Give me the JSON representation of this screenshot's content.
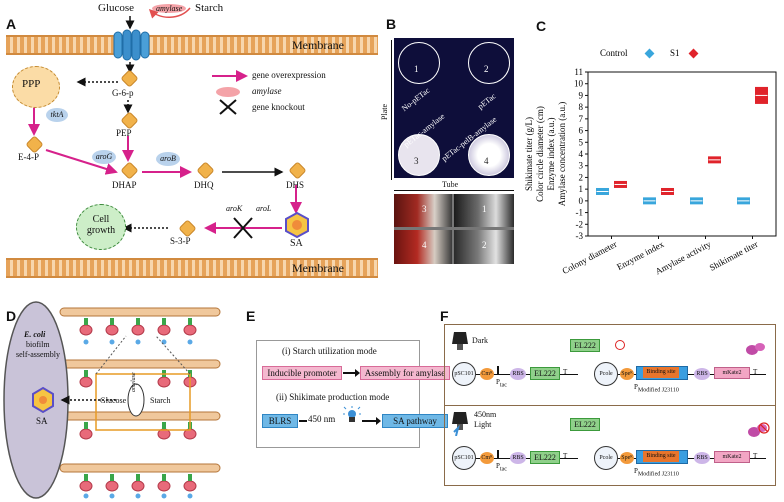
{
  "panelA": {
    "letter": "A",
    "glucose": "Glucose",
    "amylase_enzyme": "amylase",
    "starch": "Starch",
    "membrane_top": "Membrane",
    "membrane_bottom": "Membrane",
    "ppp": "PPP",
    "g6p": "G-6-p",
    "pep": "PEP",
    "e4p": "E-4-P",
    "dhap": "DHAP",
    "dhq": "DHQ",
    "dhs": "DHS",
    "sa": "SA",
    "s3p": "S-3-P",
    "cell_growth": "Cell growth",
    "tktA": "tktA",
    "aroG": "aroG",
    "aroB": "aroB",
    "aroK": "aroK",
    "aroL": "aroL",
    "legend": {
      "overexpression": "gene overexpression",
      "amylase": "amylase",
      "knockout": "gene knockout"
    }
  },
  "panelB": {
    "letter": "B",
    "plate_label": "Plate",
    "tube_label": "Tube",
    "plates": [
      {
        "num": "1",
        "label": "No-pETac"
      },
      {
        "num": "2",
        "label": "pETac"
      },
      {
        "num": "3",
        "label": "pETac-amylase"
      },
      {
        "num": "4",
        "label": "pETac-pelB-amylase"
      }
    ],
    "tubes": [
      "3",
      "1",
      "4",
      "2"
    ]
  },
  "panelC": {
    "letter": "C",
    "legend_control": "Control",
    "legend_s1": "S1",
    "ylabel_lines": [
      "Shikimate titer (g/L)",
      "Color circle diameter (cm)",
      "Enzyme index (a.u.)",
      "Amylase concentration (a.u.)"
    ],
    "colors": {
      "control": "#39a6dc",
      "s1": "#e0232b"
    }
  },
  "chart_data": {
    "type": "box",
    "categories": [
      "Colony diameter",
      "Enzyme index",
      "Amylase activity",
      "Shikimate titer"
    ],
    "ylim": [
      -3,
      11
    ],
    "yticks": [
      -3,
      -2,
      -1,
      0,
      1,
      2,
      3,
      4,
      5,
      6,
      7,
      8,
      9,
      10,
      11
    ],
    "series": [
      {
        "name": "Control",
        "values": [
          0.8,
          0,
          0,
          0
        ]
      },
      {
        "name": "S1",
        "values": [
          1.4,
          0.8,
          3.5,
          9
        ]
      }
    ],
    "ylabel": "Shikimate titer (g/L) Color circle diameter (cm) Enzyme index (a.u.) Amylase concentration (a.u.)",
    "legend": "top"
  },
  "panelD": {
    "letter": "D",
    "ecoli": "E. coli",
    "biofilm": "biofilm",
    "self_assembly": "self-assembly",
    "glucose": "Glucose",
    "amylase": "amylase",
    "starch": "Starch",
    "sa": "SA"
  },
  "panelE": {
    "letter": "E",
    "mode1_title": "(i) Starch utilization mode",
    "inducible": "Inducible promoter",
    "assembly": "Assembly for amylase",
    "mode2_title": "(ii) Shikimate production mode",
    "blrs": "BLRS",
    "wavelength": "450 nm",
    "sa_pathway": "SA pathway"
  },
  "panelF": {
    "letter": "F",
    "dark": "Dark",
    "light_nm": "450nm",
    "light": "Light",
    "psc101": "pSC101",
    "cm": "Cmᴿ",
    "rbs": "RBS",
    "el222": "EL222",
    "ptac": "P",
    "ptac_sub": "tac",
    "pcole": "Pcole",
    "spe": "Speᴿ",
    "binding": "Binding site",
    "pmod": "P",
    "pmod_sub": "Modified J23110",
    "mkate": "mKate2",
    "term": "T"
  }
}
